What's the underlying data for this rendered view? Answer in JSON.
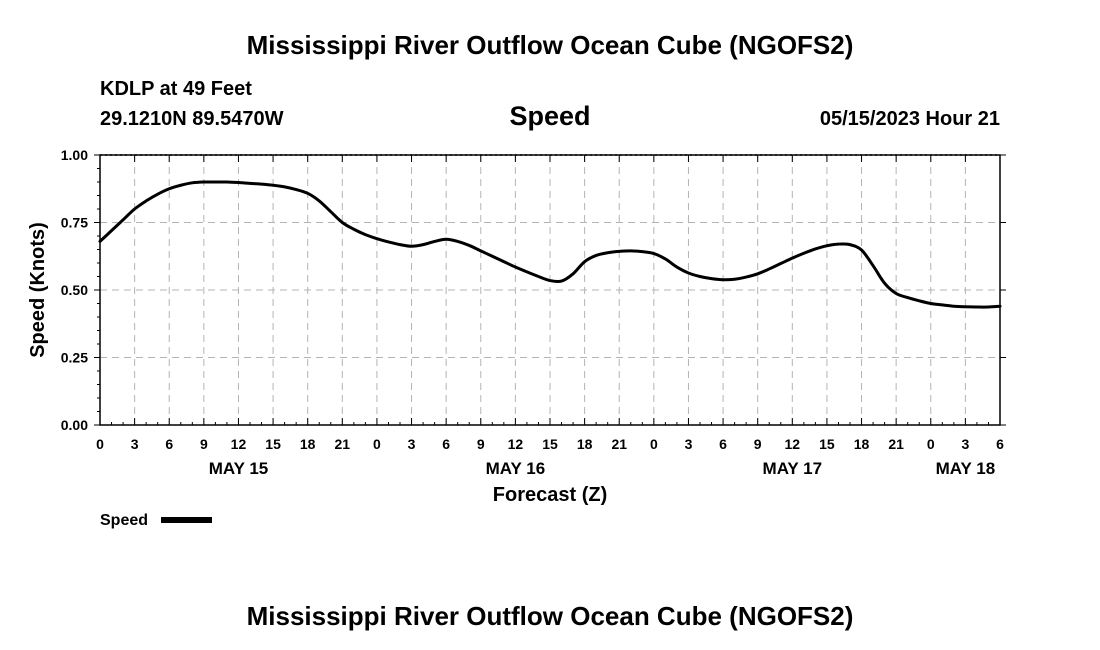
{
  "page": {
    "title": "Mississippi River Outflow Ocean Cube (NGOFS2)",
    "footer_title": "Mississippi River Outflow Ocean Cube (NGOFS2)",
    "station": "KDLP at 49 Feet",
    "coords": "29.1210N  89.5470W",
    "subtitle": "Speed",
    "datetime": "05/15/2023 Hour 21"
  },
  "chart_data": {
    "type": "line",
    "title": "Speed",
    "xlabel": "Forecast (Z)",
    "ylabel": "Speed (Knots)",
    "x_unit": "hours since 2023-05-15 00Z",
    "xlim": [
      0,
      78
    ],
    "ylim": [
      0,
      1
    ],
    "grid": true,
    "legend_position": "bottom-left",
    "y_ticks": [
      {
        "value": 0,
        "label": "0.00"
      },
      {
        "value": 0.25,
        "label": "0.25"
      },
      {
        "value": 0.5,
        "label": "0.50"
      },
      {
        "value": 0.75,
        "label": "0.75"
      },
      {
        "value": 1.0,
        "label": "1.00"
      }
    ],
    "x_ticks": [
      {
        "value": 0,
        "label": "0"
      },
      {
        "value": 3,
        "label": "3"
      },
      {
        "value": 6,
        "label": "6"
      },
      {
        "value": 9,
        "label": "9"
      },
      {
        "value": 12,
        "label": "12"
      },
      {
        "value": 15,
        "label": "15"
      },
      {
        "value": 18,
        "label": "18"
      },
      {
        "value": 21,
        "label": "21"
      },
      {
        "value": 24,
        "label": "0"
      },
      {
        "value": 27,
        "label": "3"
      },
      {
        "value": 30,
        "label": "6"
      },
      {
        "value": 33,
        "label": "9"
      },
      {
        "value": 36,
        "label": "12"
      },
      {
        "value": 39,
        "label": "15"
      },
      {
        "value": 42,
        "label": "18"
      },
      {
        "value": 45,
        "label": "21"
      },
      {
        "value": 48,
        "label": "0"
      },
      {
        "value": 51,
        "label": "3"
      },
      {
        "value": 54,
        "label": "6"
      },
      {
        "value": 57,
        "label": "9"
      },
      {
        "value": 60,
        "label": "12"
      },
      {
        "value": 63,
        "label": "15"
      },
      {
        "value": 66,
        "label": "18"
      },
      {
        "value": 69,
        "label": "21"
      },
      {
        "value": 72,
        "label": "0"
      },
      {
        "value": 75,
        "label": "3"
      },
      {
        "value": 78,
        "label": "6"
      }
    ],
    "day_labels": [
      {
        "value": 12,
        "label": "MAY 15"
      },
      {
        "value": 36,
        "label": "MAY 16"
      },
      {
        "value": 60,
        "label": "MAY 17"
      },
      {
        "value": 75,
        "label": "MAY 18"
      }
    ],
    "series": [
      {
        "name": "Speed",
        "color": "#000000",
        "x": [
          0,
          1,
          2,
          3,
          4,
          5,
          6,
          7,
          8,
          9,
          10,
          11,
          12,
          13,
          14,
          15,
          16,
          17,
          18,
          19,
          20,
          21,
          22,
          23,
          24,
          25,
          26,
          27,
          28,
          29,
          30,
          31,
          32,
          33,
          34,
          35,
          36,
          37,
          38,
          39,
          40,
          41,
          42,
          43,
          44,
          45,
          46,
          47,
          48,
          49,
          50,
          51,
          52,
          53,
          54,
          55,
          56,
          57,
          58,
          59,
          60,
          61,
          62,
          63,
          64,
          65,
          66,
          67,
          68,
          69,
          70,
          71,
          72,
          73,
          74,
          75,
          76,
          77,
          78
        ],
        "values": [
          0.68,
          0.72,
          0.76,
          0.8,
          0.83,
          0.855,
          0.875,
          0.888,
          0.897,
          0.9,
          0.9,
          0.9,
          0.898,
          0.895,
          0.892,
          0.888,
          0.882,
          0.872,
          0.858,
          0.83,
          0.79,
          0.75,
          0.725,
          0.705,
          0.69,
          0.678,
          0.668,
          0.662,
          0.668,
          0.68,
          0.688,
          0.68,
          0.665,
          0.645,
          0.625,
          0.605,
          0.585,
          0.567,
          0.55,
          0.535,
          0.533,
          0.56,
          0.605,
          0.628,
          0.638,
          0.643,
          0.645,
          0.642,
          0.635,
          0.615,
          0.585,
          0.563,
          0.55,
          0.542,
          0.538,
          0.54,
          0.548,
          0.56,
          0.578,
          0.598,
          0.618,
          0.636,
          0.652,
          0.664,
          0.67,
          0.668,
          0.648,
          0.59,
          0.525,
          0.487,
          0.472,
          0.46,
          0.45,
          0.445,
          0.44,
          0.438,
          0.437,
          0.437,
          0.44
        ]
      }
    ],
    "legend": [
      {
        "label": "Speed",
        "color": "#000000"
      }
    ]
  }
}
